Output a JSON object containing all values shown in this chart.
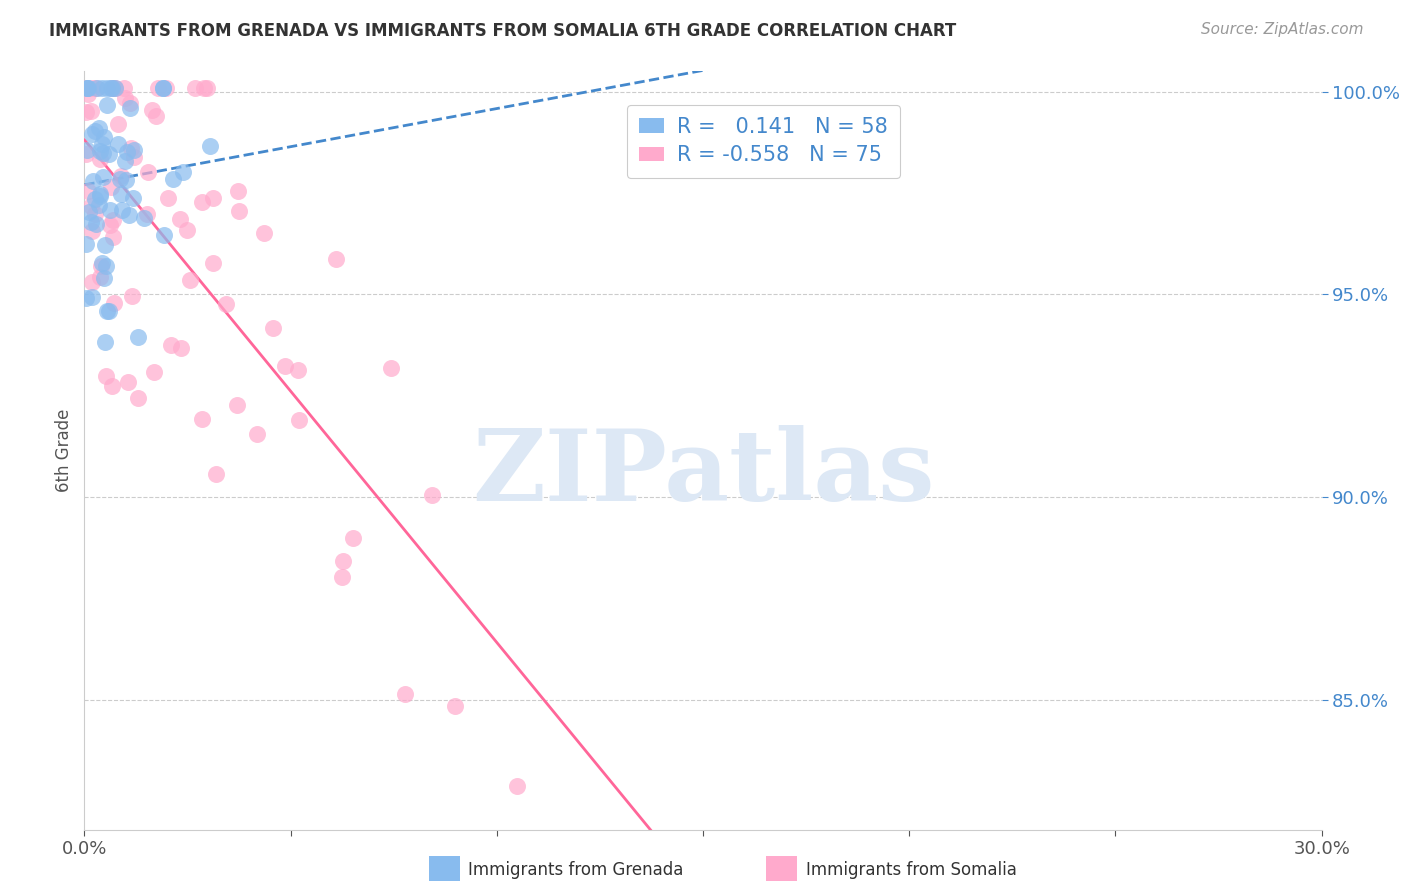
{
  "title": "IMMIGRANTS FROM GRENADA VS IMMIGRANTS FROM SOMALIA 6TH GRADE CORRELATION CHART",
  "source": "Source: ZipAtlas.com",
  "ylabel": "6th Grade",
  "xlim": [
    0.0,
    0.3
  ],
  "ylim": [
    0.818,
    1.005
  ],
  "xticks": [
    0.0,
    0.05,
    0.1,
    0.15,
    0.2,
    0.25,
    0.3
  ],
  "xticklabels": [
    "0.0%",
    "",
    "",
    "",
    "",
    "",
    "30.0%"
  ],
  "yticks": [
    0.85,
    0.9,
    0.95,
    1.0
  ],
  "yticklabels": [
    "85.0%",
    "90.0%",
    "95.0%",
    "100.0%"
  ],
  "grenada_color": "#88bbee",
  "somalia_color": "#ffaacc",
  "grenada_line_color": "#4488cc",
  "somalia_line_color": "#ff6699",
  "R_grenada": 0.141,
  "N_grenada": 58,
  "R_somalia": -0.558,
  "N_somalia": 75,
  "background_color": "#ffffff",
  "watermark": "ZIPatlas",
  "watermark_color": "#dde8f5",
  "legend_R_color": "#cc8800",
  "legend_N_color": "#4488cc"
}
